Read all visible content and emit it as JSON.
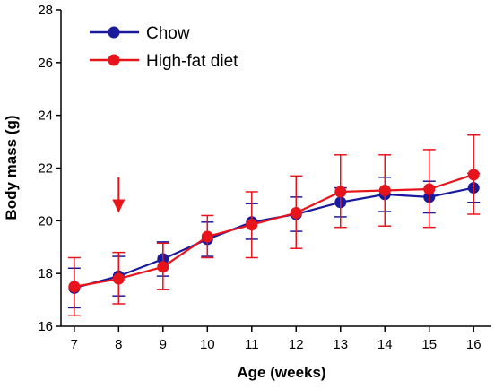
{
  "chart_data": {
    "type": "line",
    "title": "",
    "xlabel": "Age (weeks)",
    "ylabel": "Body mass (g)",
    "x": [
      7,
      8,
      9,
      10,
      11,
      12,
      13,
      14,
      15,
      16
    ],
    "xlim": [
      6.7,
      16.4
    ],
    "ylim": [
      16,
      28
    ],
    "xticks": [
      7,
      8,
      9,
      10,
      11,
      12,
      13,
      14,
      15,
      16
    ],
    "yticks": [
      16,
      18,
      20,
      22,
      24,
      26,
      28
    ],
    "grid": false,
    "legend_position": "top-left",
    "series": [
      {
        "name": "Chow",
        "color": "#1a1a9c",
        "values": [
          17.45,
          17.9,
          18.55,
          19.3,
          19.95,
          20.25,
          20.7,
          21.0,
          20.9,
          21.25
        ],
        "err_upper": [
          18.2,
          18.65,
          19.2,
          19.95,
          20.65,
          20.9,
          21.25,
          21.65,
          21.5,
          21.8
        ],
        "err_lower": [
          16.7,
          17.15,
          17.9,
          18.65,
          19.3,
          19.6,
          20.15,
          20.35,
          20.3,
          20.7
        ]
      },
      {
        "name": "High-fat diet",
        "color": "#e8141b",
        "values": [
          17.5,
          17.8,
          18.25,
          19.4,
          19.85,
          20.3,
          21.1,
          21.15,
          21.2,
          21.75
        ],
        "err_upper": [
          18.6,
          18.8,
          19.15,
          20.2,
          21.1,
          21.7,
          22.5,
          22.5,
          22.7,
          23.25
        ],
        "err_lower": [
          16.4,
          16.85,
          17.4,
          18.6,
          18.6,
          18.95,
          19.75,
          19.8,
          19.75,
          20.25
        ]
      }
    ],
    "annotations": [
      {
        "type": "arrow",
        "x": 8,
        "y_top": 21.65,
        "y_bottom": 20.3,
        "color": "#e8141b"
      }
    ]
  }
}
